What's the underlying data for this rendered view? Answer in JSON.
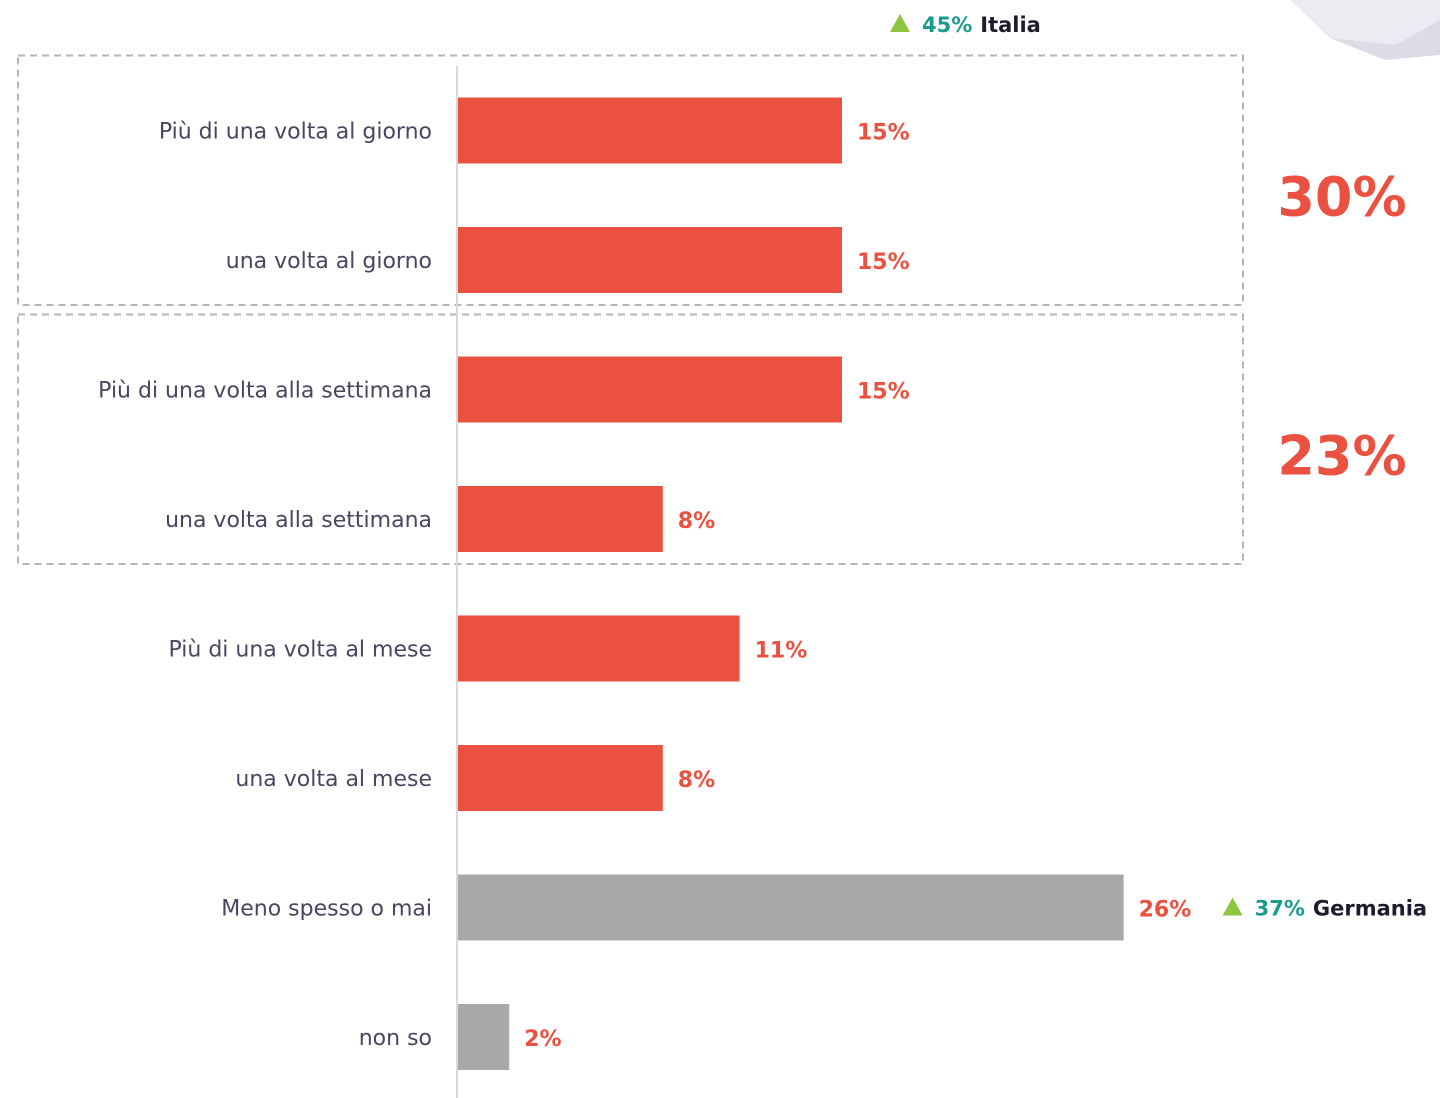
{
  "colors": {
    "bar_primary": "#eb5140",
    "bar_secondary": "#a8a8a8",
    "value_text": "#eb5140",
    "note_value": "#1a9b8c",
    "note_triangle": "#8cc63f",
    "axis": "#d9d9d9",
    "group_border": "#b5b5b5"
  },
  "chart_data": {
    "type": "bar",
    "orientation": "horizontal",
    "categories": [
      "Più di una volta al giorno",
      "una volta al giorno",
      "Più di una volta alla settimana",
      "una volta alla settimana",
      "Più di una volta  al mese",
      "una volta al mese",
      "Meno spesso o mai",
      "non so"
    ],
    "values": [
      15,
      15,
      15,
      8,
      11,
      8,
      26,
      2
    ],
    "value_labels": [
      "15%",
      "15%",
      "15%",
      "8%",
      "11%",
      "8%",
      "26%",
      "2%"
    ],
    "bar_colors": [
      "primary",
      "primary",
      "primary",
      "primary",
      "primary",
      "primary",
      "secondary",
      "secondary"
    ],
    "xlim": [
      0,
      30
    ],
    "groups": [
      {
        "categories": [
          0,
          1
        ],
        "total": "30%"
      },
      {
        "categories": [
          2,
          3
        ],
        "total": "23%"
      }
    ],
    "notes": [
      {
        "value": "45%",
        "country": "Italia",
        "anchor": "top"
      },
      {
        "value": "37%",
        "country": "Germania",
        "anchor_category": 6
      }
    ]
  }
}
